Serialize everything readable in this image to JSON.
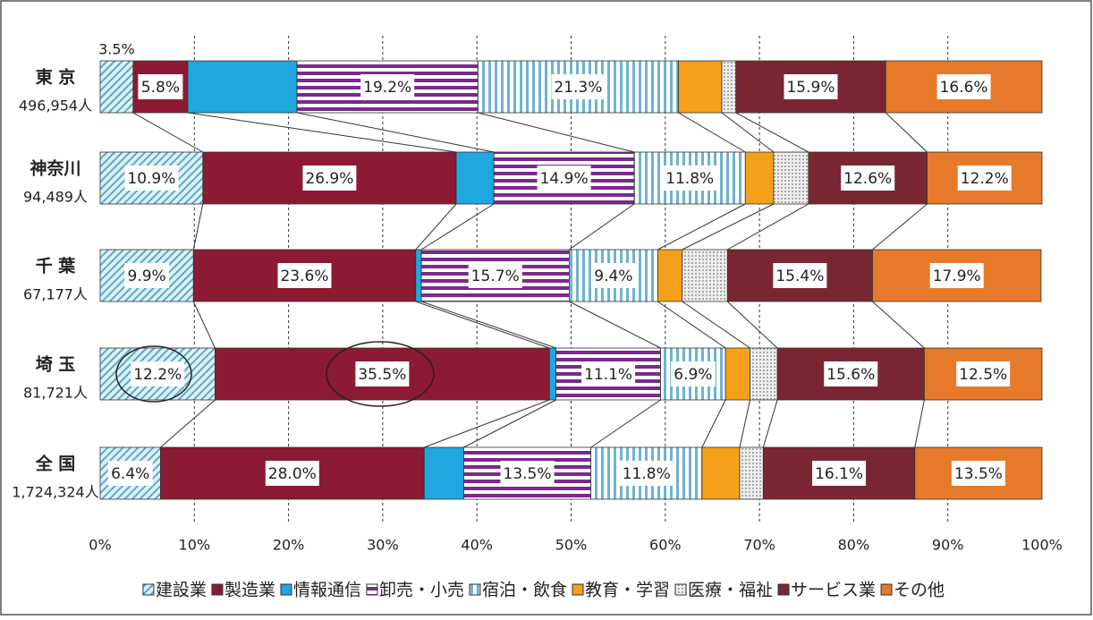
{
  "chart_data": {
    "type": "stacked_barh_100",
    "categories": [
      "東 京",
      "神奈川",
      "千 葉",
      "埼 玉",
      "全 国"
    ],
    "totals": [
      "496,954人",
      "94,489人",
      "67,177人",
      "81,721人",
      "1,724,324人"
    ],
    "xlim": [
      0,
      100
    ],
    "xticks": [
      {
        "value": 0,
        "label": "0%"
      },
      {
        "value": 10,
        "label": "10%"
      },
      {
        "value": 20,
        "label": "20%"
      },
      {
        "value": 30,
        "label": "30%"
      },
      {
        "value": 40,
        "label": "40%"
      },
      {
        "value": 50,
        "label": "50%"
      },
      {
        "value": 60,
        "label": "60%"
      },
      {
        "value": 70,
        "label": "70%"
      },
      {
        "value": 80,
        "label": "80%"
      },
      {
        "value": 90,
        "label": "90%"
      },
      {
        "value": 100,
        "label": "100%"
      }
    ],
    "grid": true,
    "legend": "bottom",
    "series": [
      {
        "name": "建設業",
        "color": "#5aaac8",
        "pattern": "diagonal",
        "values": [
          3.5,
          10.9,
          9.9,
          12.2,
          6.4
        ],
        "value_labels": [
          "3.5%",
          "10.9%",
          "9.9%",
          "12.2%",
          "6.4%"
        ]
      },
      {
        "name": "製造業",
        "color": "#8c1a33",
        "pattern": "solid",
        "values": [
          5.8,
          26.9,
          23.6,
          35.5,
          28.0
        ],
        "value_labels": [
          "5.8%",
          "26.9%",
          "23.6%",
          "35.5%",
          "28.0%"
        ]
      },
      {
        "name": "情報通信",
        "color": "#1ea7e1",
        "pattern": "solid",
        "values": [
          11.6,
          4.0,
          0.6,
          0.7,
          4.2
        ],
        "value_labels": [
          null,
          null,
          null,
          null,
          null
        ]
      },
      {
        "name": "卸売・小売",
        "color": "#7a2a8a",
        "pattern": "horizontal",
        "values": [
          19.2,
          14.9,
          15.7,
          11.1,
          13.5
        ],
        "value_labels": [
          "19.2%",
          "14.9%",
          "15.7%",
          "11.1%",
          "13.5%"
        ]
      },
      {
        "name": "宿泊・飲食",
        "color": "#6fb3cf",
        "pattern": "vertical",
        "values": [
          21.3,
          11.8,
          9.4,
          6.9,
          11.8
        ],
        "value_labels": [
          "21.3%",
          "11.8%",
          "9.4%",
          "6.9%",
          "11.8%"
        ]
      },
      {
        "name": "教育・学習",
        "color": "#f5a01a",
        "pattern": "solid",
        "values": [
          4.6,
          3.0,
          2.6,
          2.6,
          4.0
        ],
        "value_labels": [
          null,
          null,
          null,
          null,
          null
        ]
      },
      {
        "name": "医療・福祉",
        "color": "#777777",
        "pattern": "dots",
        "values": [
          1.5,
          3.7,
          4.8,
          2.9,
          2.5
        ],
        "value_labels": [
          null,
          null,
          null,
          null,
          null
        ]
      },
      {
        "name": "サービス業",
        "color": "#7a2632",
        "pattern": "solid",
        "values": [
          15.9,
          12.6,
          15.4,
          15.6,
          16.1
        ],
        "value_labels": [
          "15.9%",
          "12.6%",
          "15.4%",
          "15.6%",
          "16.1%"
        ]
      },
      {
        "name": "その他",
        "color": "#e67a2a",
        "pattern": "solid",
        "values": [
          16.6,
          12.2,
          17.9,
          12.5,
          13.5
        ],
        "value_labels": [
          "16.6%",
          "12.2%",
          "17.9%",
          "12.5%",
          "13.5%"
        ]
      }
    ]
  }
}
